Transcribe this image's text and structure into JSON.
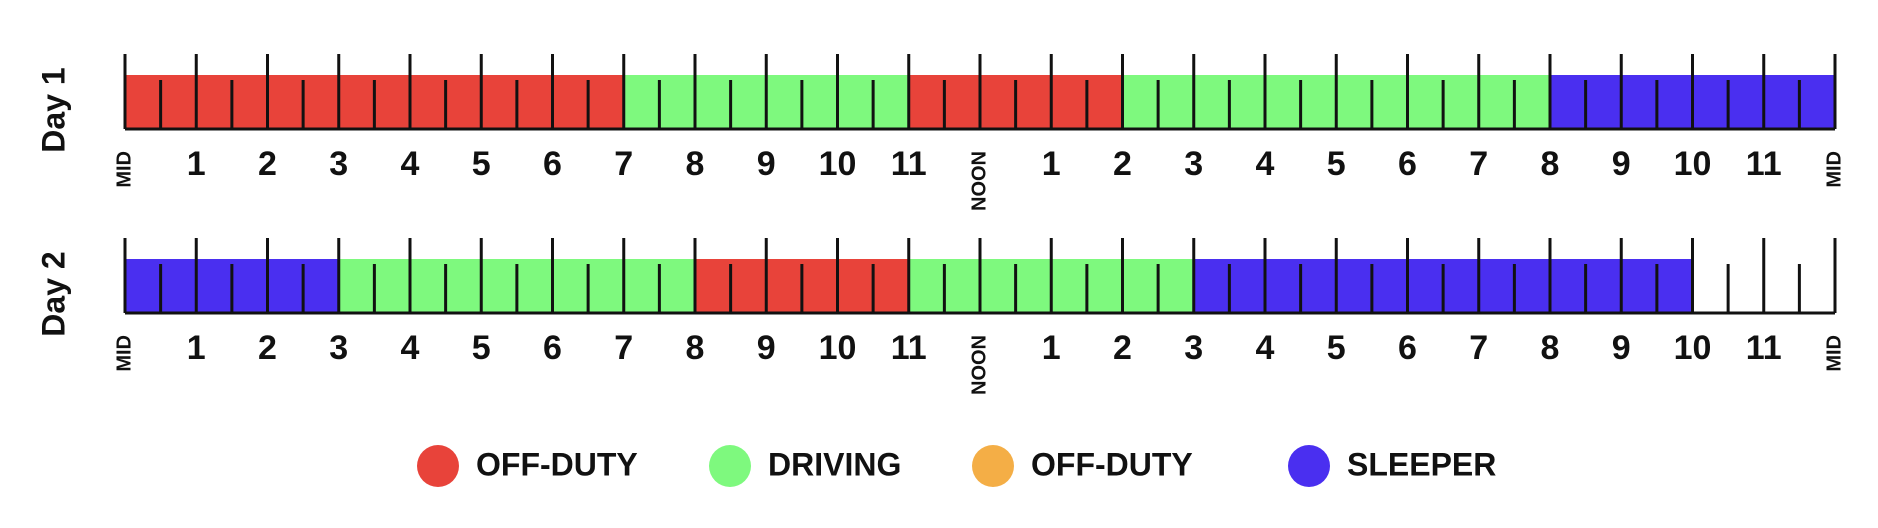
{
  "chart_data": {
    "type": "timeline",
    "xlim": [
      0,
      24
    ],
    "xticks": [
      {
        "value": 0,
        "label": "MID"
      },
      1,
      2,
      3,
      4,
      5,
      6,
      7,
      8,
      9,
      10,
      11,
      {
        "value": 12,
        "label": "NOON"
      },
      {
        "value": 13,
        "label": "1"
      },
      {
        "value": 14,
        "label": "2"
      },
      {
        "value": 15,
        "label": "3"
      },
      {
        "value": 16,
        "label": "4"
      },
      {
        "value": 17,
        "label": "5"
      },
      {
        "value": 18,
        "label": "6"
      },
      {
        "value": 19,
        "label": "7"
      },
      {
        "value": 20,
        "label": "8"
      },
      {
        "value": 21,
        "label": "9"
      },
      {
        "value": 22,
        "label": "10"
      },
      {
        "value": 23,
        "label": "11"
      },
      {
        "value": 24,
        "label": "MID"
      }
    ],
    "minor_xticks": [
      0.5,
      1.5,
      2.5,
      3.5,
      4.5,
      5.5,
      6.5,
      7.5,
      8.5,
      9.5,
      10.5,
      11.5,
      12.5,
      13.5,
      14.5,
      15.5,
      16.5,
      17.5,
      18.5,
      19.5,
      20.5,
      21.5,
      22.5,
      23.5
    ],
    "rows": [
      {
        "label": "Day 1",
        "segments": [
          {
            "start": 0,
            "end": 7,
            "color": "#e8433a"
          },
          {
            "start": 7,
            "end": 11,
            "color": "#7ef97e"
          },
          {
            "start": 11,
            "end": 14,
            "color": "#e8433a"
          },
          {
            "start": 14,
            "end": 20,
            "color": "#7ef97e"
          },
          {
            "start": 20,
            "end": 24,
            "color": "#4a2ff0"
          }
        ]
      },
      {
        "label": "Day 2",
        "segments": [
          {
            "start": 0,
            "end": 3,
            "color": "#4a2ff0"
          },
          {
            "start": 3,
            "end": 8,
            "color": "#7ef97e"
          },
          {
            "start": 8,
            "end": 11,
            "color": "#e8433a"
          },
          {
            "start": 11,
            "end": 15,
            "color": "#7ef97e"
          },
          {
            "start": 15,
            "end": 22,
            "color": "#4a2ff0"
          }
        ]
      }
    ],
    "legend": [
      {
        "name": "OFF-DUTY",
        "color": "#e8433a"
      },
      {
        "name": "DRIVING",
        "color": "#7ef97e"
      },
      {
        "name": "OFF-DUTY",
        "color": "#f4ae46"
      },
      {
        "name": "SLEEPER",
        "color": "#4a2ff0"
      }
    ]
  }
}
